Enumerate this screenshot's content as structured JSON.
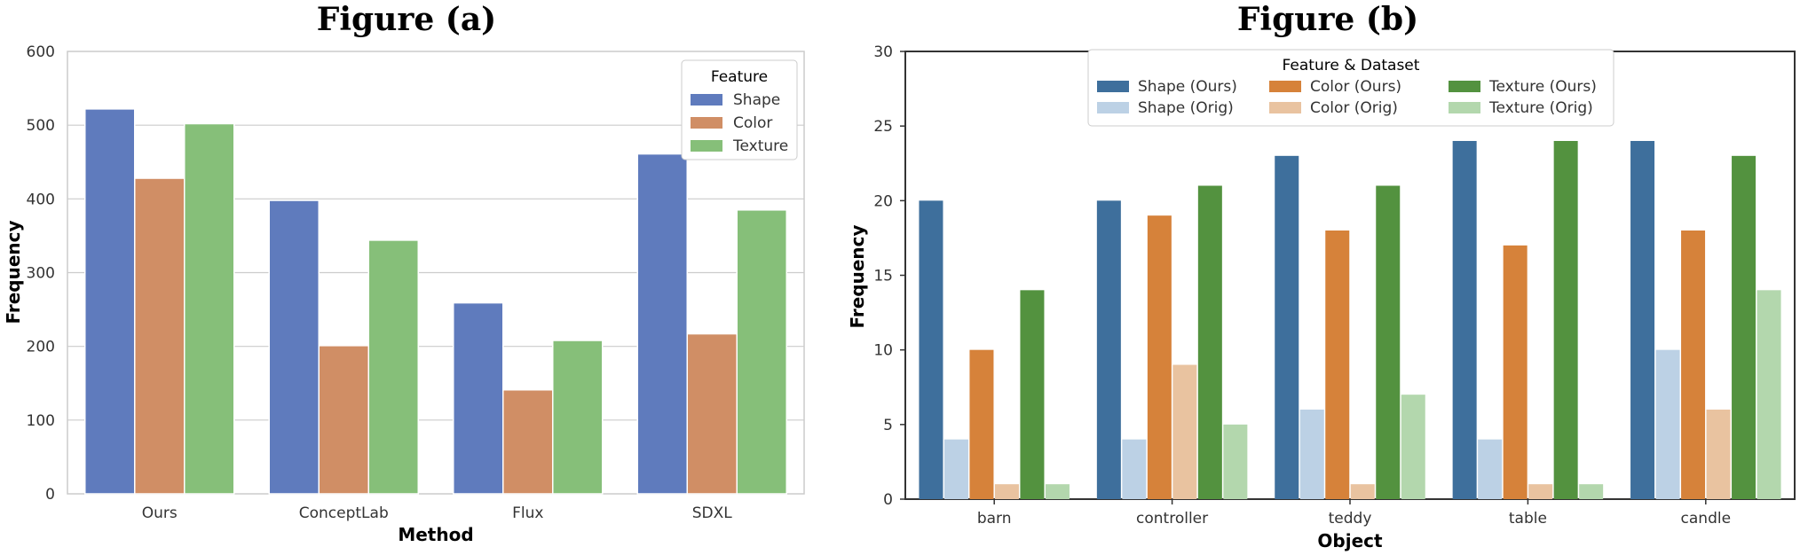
{
  "chart_data": [
    {
      "type": "bar",
      "title": "Figure (a)",
      "xlabel": "Method",
      "ylabel": "Frequency",
      "categories": [
        "Ours",
        "ConceptLab",
        "Flux",
        "SDXL"
      ],
      "ylim": [
        0,
        600
      ],
      "yticks": [
        0,
        100,
        200,
        300,
        400,
        500,
        600
      ],
      "grid": true,
      "legend": {
        "title": "Feature",
        "placement": "top-right"
      },
      "series": [
        {
          "name": "Shape",
          "color": "#5f7bbd",
          "values": [
            522,
            398,
            259,
            461
          ]
        },
        {
          "name": "Color",
          "color": "#d08e65",
          "values": [
            428,
            201,
            141,
            217
          ]
        },
        {
          "name": "Texture",
          "color": "#86bf79",
          "values": [
            502,
            344,
            208,
            385
          ]
        }
      ]
    },
    {
      "type": "bar",
      "title": "Figure (b)",
      "xlabel": "Object",
      "ylabel": "Frequency",
      "categories": [
        "barn",
        "controller",
        "teddy",
        "table",
        "candle"
      ],
      "ylim": [
        0,
        30
      ],
      "yticks": [
        0,
        5,
        10,
        15,
        20,
        25,
        30
      ],
      "grid": false,
      "legend": {
        "title": "Feature & Dataset",
        "placement": "top-center",
        "columns": 3
      },
      "series": [
        {
          "name": "Shape (Ours)",
          "color": "#3e6f9c",
          "values": [
            20,
            20,
            23,
            24,
            24
          ]
        },
        {
          "name": "Shape (Orig)",
          "color": "#bcd1e5",
          "values": [
            4,
            4,
            6,
            4,
            10
          ]
        },
        {
          "name": "Color (Ours)",
          "color": "#d6823a",
          "values": [
            10,
            19,
            18,
            17,
            18
          ]
        },
        {
          "name": "Color (Orig)",
          "color": "#e9c3a0",
          "values": [
            1,
            9,
            1,
            1,
            6
          ]
        },
        {
          "name": "Texture (Ours)",
          "color": "#53923f",
          "values": [
            14,
            21,
            21,
            24,
            23
          ]
        },
        {
          "name": "Texture (Orig)",
          "color": "#b3d7ad",
          "values": [
            1,
            5,
            7,
            1,
            14
          ]
        }
      ]
    }
  ]
}
